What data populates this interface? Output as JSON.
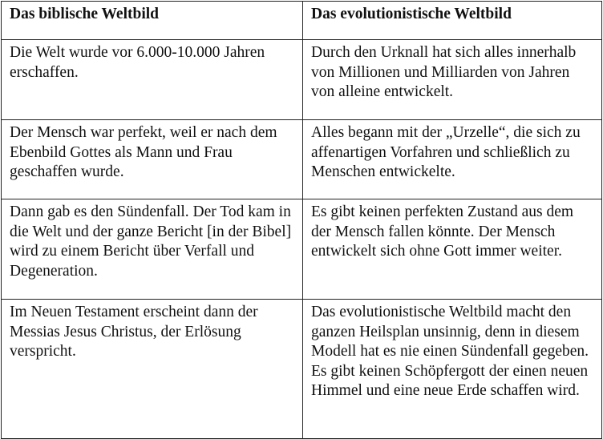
{
  "table": {
    "headers": [
      "Das biblische Weltbild",
      "Das evolutionistische Weltbild"
    ],
    "rows": [
      [
        "Die Welt wurde vor 6.000-10.000 Jahren erschaffen.",
        "Durch den Urknall hat sich alles innerhalb von Millionen und Milliarden von Jahren von alleine entwickelt."
      ],
      [
        "Der Mensch war perfekt, weil er nach dem Ebenbild Gottes als Mann und Frau geschaffen wurde.",
        "Alles begann mit der „Urzelle“, die sich zu affenartigen Vorfahren und schließlich zu Menschen entwickelte."
      ],
      [
        "Dann gab es den Sündenfall. Der Tod kam in die Welt und der ganze Bericht [in der Bibel] wird zu einem Bericht über Verfall und Degeneration.",
        "Es gibt keinen perfekten Zustand aus dem der Mensch fallen könnte. Der Mensch entwickelt sich ohne Gott immer weiter."
      ],
      [
        "Im Neuen Testament erscheint dann der Messias Jesus Christus, der Erlösung verspricht.",
        "Das evolutionistische Weltbild macht den ganzen Heilsplan unsinnig, denn in diesem Modell hat es nie einen Sündenfall gegeben. Es gibt keinen Schöpfergott der einen neuen Himmel und eine neue Erde schaffen wird."
      ]
    ]
  }
}
